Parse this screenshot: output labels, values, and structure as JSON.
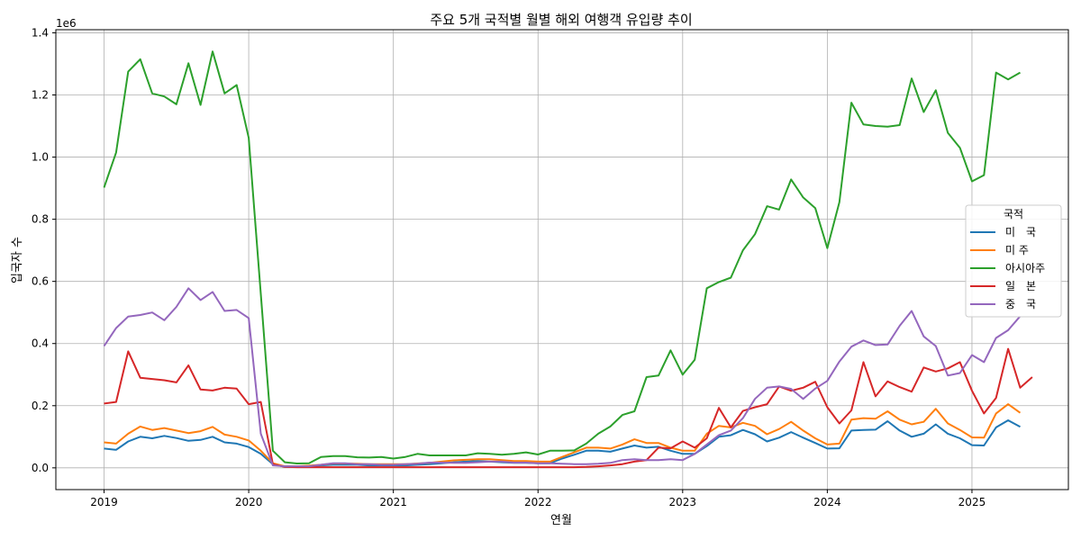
{
  "chart_data": {
    "type": "line",
    "title": "주요 5개 국적별 월별 해외 여행객 유입량 추이",
    "xlabel": "연월",
    "ylabel": "입국자 수",
    "y_offset_label": "1e6",
    "x_start": "2019-01",
    "xticks": [
      {
        "date": "2019-01",
        "label": "2019"
      },
      {
        "date": "2020-01",
        "label": "2020"
      },
      {
        "date": "2021-01",
        "label": "2021"
      },
      {
        "date": "2022-01",
        "label": "2022"
      },
      {
        "date": "2023-01",
        "label": "2023"
      },
      {
        "date": "2024-01",
        "label": "2024"
      },
      {
        "date": "2025-01",
        "label": "2025"
      }
    ],
    "yticks": [
      {
        "value": 0,
        "label": "0.0"
      },
      {
        "value": 200000,
        "label": "0.2"
      },
      {
        "value": 400000,
        "label": "0.4"
      },
      {
        "value": 600000,
        "label": "0.6"
      },
      {
        "value": 800000,
        "label": "0.8"
      },
      {
        "value": 1000000,
        "label": "1.0"
      },
      {
        "value": 1200000,
        "label": "1.2"
      },
      {
        "value": 1400000,
        "label": "1.4"
      }
    ],
    "ylim": [
      -70000,
      1410000
    ],
    "xlim": [
      "2018-09",
      "2025-09"
    ],
    "grid": true,
    "legend": {
      "title": "국적",
      "position": "right"
    },
    "series": [
      {
        "name": "미　국",
        "color": "#1f77b4",
        "values": [
          62000,
          58000,
          85000,
          100000,
          95000,
          103000,
          96000,
          87000,
          90000,
          100000,
          82000,
          78000,
          67000,
          45000,
          12000,
          3000,
          3000,
          5000,
          8000,
          10000,
          10000,
          10000,
          8000,
          8000,
          8000,
          8000,
          10000,
          12000,
          15000,
          18000,
          20000,
          22000,
          20000,
          18000,
          16000,
          16000,
          15000,
          15000,
          30000,
          42000,
          55000,
          55000,
          52000,
          62000,
          72000,
          65000,
          68000,
          55000,
          45000,
          45000,
          70000,
          100000,
          105000,
          122000,
          108000,
          85000,
          97000,
          115000,
          97000,
          80000,
          62000,
          63000,
          120000,
          122000,
          123000,
          150000,
          120000,
          100000,
          110000,
          140000,
          110000,
          95000,
          73000,
          72000,
          130000,
          153000,
          132000
        ]
      },
      {
        "name": "미 주",
        "color": "#ff7f0e",
        "values": [
          82000,
          78000,
          110000,
          133000,
          122000,
          128000,
          120000,
          112000,
          118000,
          132000,
          107000,
          100000,
          88000,
          55000,
          15000,
          5000,
          5000,
          7000,
          10000,
          14000,
          14000,
          13000,
          12000,
          12000,
          12000,
          12000,
          14000,
          16000,
          20000,
          24000,
          26000,
          28000,
          28000,
          25000,
          22000,
          22000,
          20000,
          20000,
          35000,
          50000,
          65000,
          65000,
          62000,
          75000,
          92000,
          80000,
          80000,
          65000,
          55000,
          55000,
          110000,
          135000,
          130000,
          145000,
          135000,
          108000,
          125000,
          148000,
          120000,
          95000,
          75000,
          78000,
          155000,
          160000,
          158000,
          182000,
          155000,
          140000,
          148000,
          190000,
          143000,
          122000,
          98000,
          97000,
          175000,
          205000,
          177000
        ]
      },
      {
        "name": "아시아주",
        "color": "#2ca02c",
        "values": [
          902000,
          1015000,
          1275000,
          1315000,
          1205000,
          1195000,
          1170000,
          1302000,
          1168000,
          1340000,
          1205000,
          1232000,
          1062000,
          560000,
          55000,
          18000,
          14000,
          15000,
          35000,
          38000,
          38000,
          34000,
          33000,
          35000,
          30000,
          35000,
          45000,
          40000,
          40000,
          40000,
          40000,
          47000,
          45000,
          42000,
          45000,
          50000,
          43000,
          55000,
          55000,
          56000,
          78000,
          110000,
          133000,
          170000,
          182000,
          292000,
          297000,
          378000,
          300000,
          348000,
          578000,
          598000,
          612000,
          700000,
          752000,
          842000,
          831000,
          928000,
          870000,
          836000,
          707000,
          855000,
          1175000,
          1105000,
          1100000,
          1098000,
          1103000,
          1253000,
          1145000,
          1215000,
          1078000,
          1030000,
          922000,
          942000,
          1272000,
          1250000,
          1272000
        ]
      },
      {
        "name": "일　본",
        "color": "#d62728",
        "values": [
          207000,
          212000,
          375000,
          290000,
          286000,
          282000,
          275000,
          330000,
          252000,
          249000,
          258000,
          255000,
          205000,
          212000,
          12000,
          3000,
          2000,
          2000,
          2000,
          2000,
          2000,
          2000,
          2000,
          2000,
          2000,
          2000,
          2000,
          2000,
          2000,
          2000,
          2000,
          2000,
          2000,
          2000,
          2000,
          2000,
          2000,
          2000,
          2000,
          2000,
          3000,
          5000,
          8000,
          12000,
          20000,
          25000,
          65000,
          63000,
          85000,
          65000,
          95000,
          193000,
          130000,
          183000,
          195000,
          205000,
          262000,
          248000,
          258000,
          277000,
          195000,
          143000,
          185000,
          340000,
          230000,
          278000,
          260000,
          245000,
          323000,
          310000,
          320000,
          340000,
          248000,
          175000,
          225000,
          383000,
          258000,
          292000
        ]
      },
      {
        "name": "중　국",
        "color": "#9467bd",
        "values": [
          392000,
          450000,
          487000,
          492000,
          500000,
          475000,
          518000,
          578000,
          540000,
          566000,
          505000,
          508000,
          482000,
          110000,
          8000,
          5000,
          5000,
          5000,
          10000,
          15000,
          15000,
          12000,
          12000,
          10000,
          10000,
          12000,
          13000,
          17000,
          17000,
          16000,
          16000,
          18000,
          20000,
          20000,
          17000,
          17000,
          15000,
          15000,
          13000,
          12000,
          12000,
          13000,
          16000,
          25000,
          28000,
          25000,
          25000,
          28000,
          25000,
          45000,
          75000,
          105000,
          120000,
          160000,
          222000,
          258000,
          262000,
          254000,
          222000,
          255000,
          280000,
          342000,
          390000,
          410000,
          395000,
          397000,
          457000,
          505000,
          423000,
          392000,
          297000,
          305000,
          363000,
          340000,
          418000,
          443000,
          488000
        ]
      }
    ]
  }
}
